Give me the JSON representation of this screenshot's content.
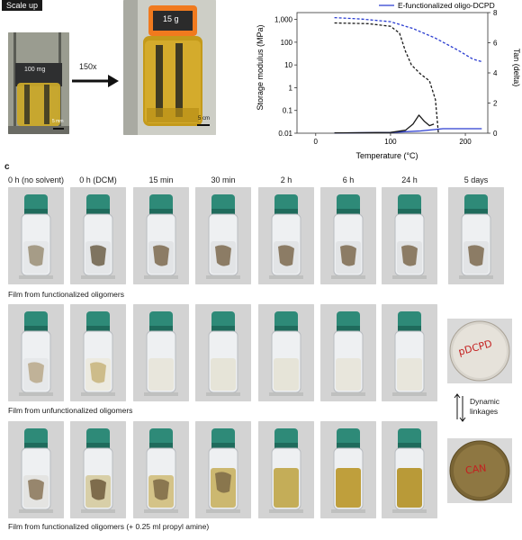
{
  "panel_a": {
    "badge": "Scale up",
    "small_vial_label": "100 mg",
    "small_scalebar": "5 mm",
    "arrow_label": "150x",
    "large_vial_label": "15 g",
    "large_scalebar": "5 cm"
  },
  "panel_b": {
    "legend": "E-functionalized oligo-DCPD",
    "ylabel_left": "Storage modulus (MPa)",
    "ylabel_right": "Tan (delta)",
    "xlabel": "Temperature (°C)",
    "x_ticks": [
      "0",
      "100",
      "200"
    ],
    "y_ticks_left": [
      "1,000",
      "100",
      "10",
      "1",
      "0.1",
      "0.01"
    ],
    "y_ticks_right": [
      "8",
      "6",
      "4",
      "2",
      "0"
    ]
  },
  "chart_data": {
    "type": "line",
    "xlabel": "Temperature (°C)",
    "ylabel": "Storage modulus (MPa)",
    "ylabel_right": "Tan (delta)",
    "xlim": [
      -25,
      230
    ],
    "ylim": [
      0.01,
      2000
    ],
    "y_scale": "log",
    "ylim_right": [
      0,
      8
    ],
    "series": [
      {
        "name": "E-functionalized oligo-DCPD",
        "axis": "left",
        "style": "dashed",
        "color": "#2a3cd0",
        "x": [
          25,
          60,
          100,
          130,
          160,
          190,
          210,
          222
        ],
        "y": [
          1200,
          1050,
          800,
          400,
          150,
          45,
          18,
          14
        ]
      },
      {
        "axis": "left",
        "style": "dashed",
        "color": "#1a1a1a",
        "x": [
          25,
          70,
          100,
          112,
          120,
          128,
          140,
          152,
          160,
          164
        ],
        "y": [
          700,
          650,
          500,
          250,
          40,
          10,
          4,
          2,
          0.3,
          0.01
        ]
      },
      {
        "axis": "right",
        "style": "solid",
        "color": "#2a3cd0",
        "x": [
          25,
          100,
          140,
          170,
          200,
          222
        ],
        "y": [
          0.02,
          0.05,
          0.15,
          0.3,
          0.3,
          0.3
        ]
      },
      {
        "axis": "right",
        "style": "solid",
        "color": "#1a1a1a",
        "x": [
          25,
          100,
          120,
          130,
          138,
          145,
          152,
          158
        ],
        "y": [
          0.02,
          0.05,
          0.2,
          0.6,
          1.2,
          0.8,
          0.5,
          0.6
        ]
      }
    ]
  },
  "panel_c": {
    "label": "c",
    "columns": [
      "0 h (no solvent)",
      "0 h (DCM)",
      "15 min",
      "30 min",
      "2 h",
      "6 h",
      "24 h",
      "5 days"
    ],
    "row1_caption": "Film from functionalized oligomers",
    "row2_caption": "Film from unfunctionalized oligomers",
    "row3_caption": "Film from functionalized oligomers (+ 0.25 ml propyl amine)",
    "disk_top": "pDCPD",
    "disk_bottom": "CAN",
    "dynamic_label_1": "Dynamic",
    "dynamic_label_2": "linkages"
  },
  "colors": {
    "cap": "#2e8a78",
    "cap_dark": "#1f6b5c",
    "liquid_yellow": "#d2b14a",
    "photo_bg": "#cfcfcf"
  }
}
